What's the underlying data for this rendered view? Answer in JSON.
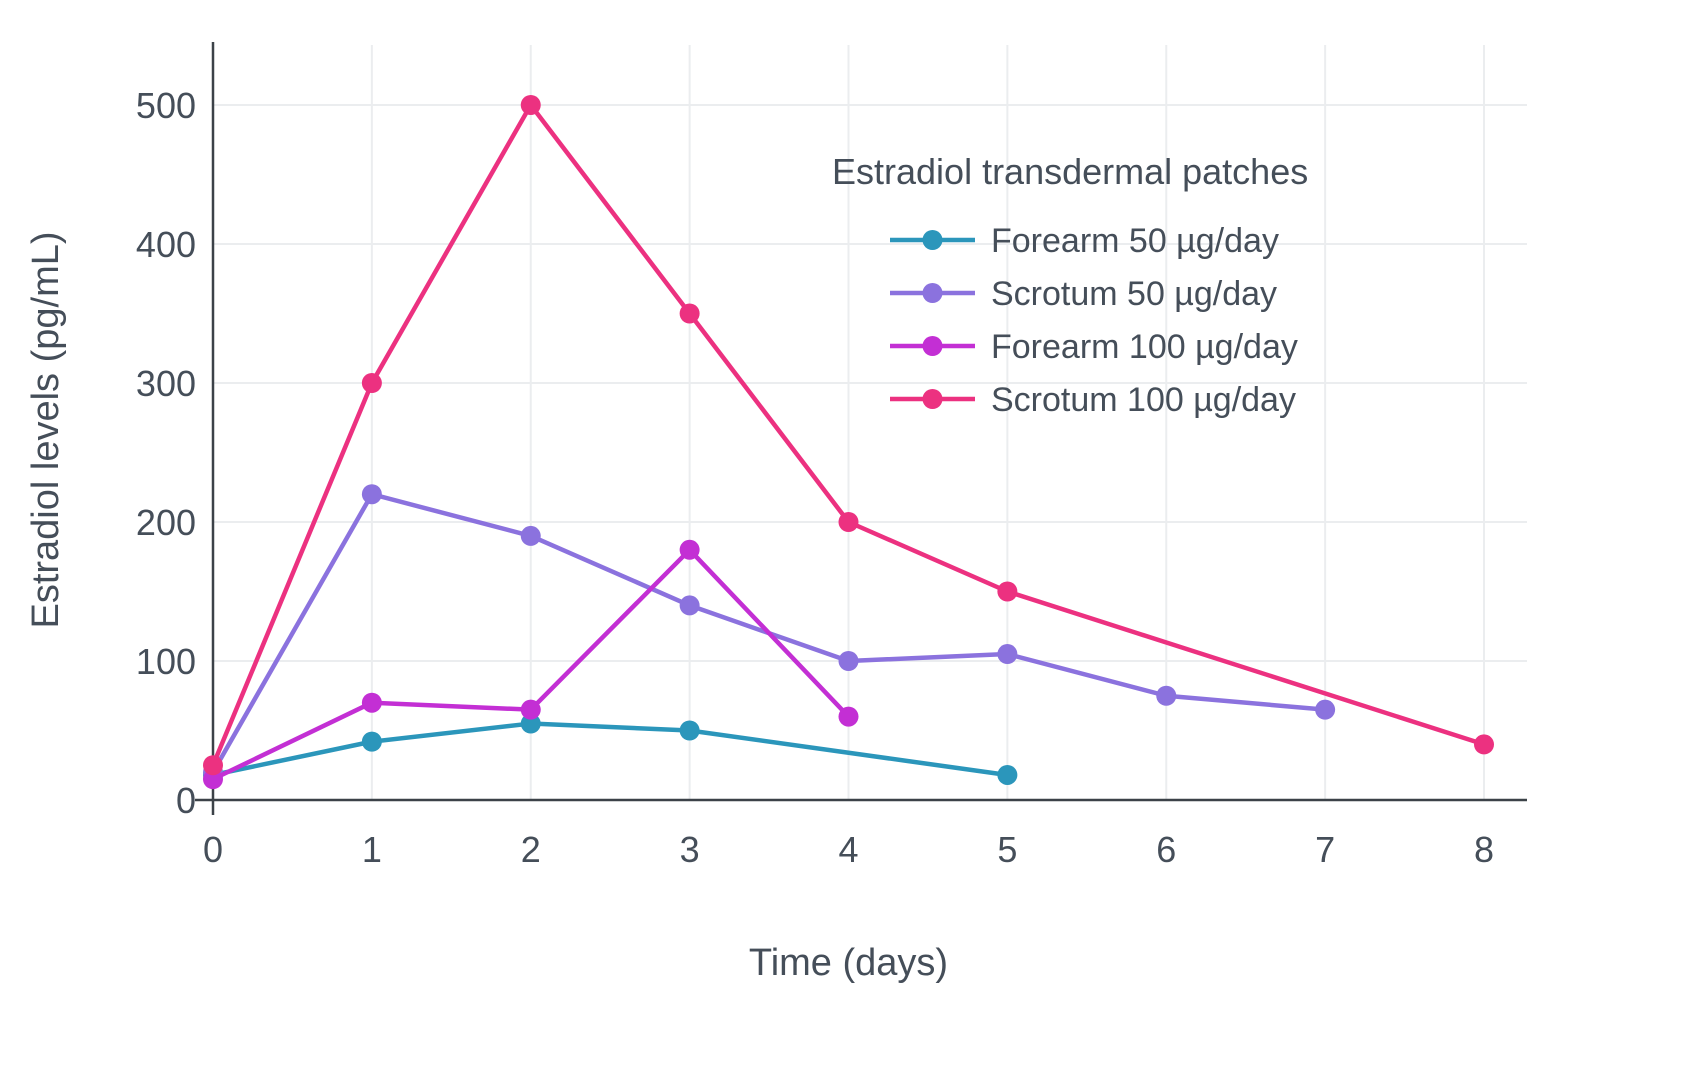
{
  "chart_data": {
    "type": "line",
    "title": "",
    "xlabel": "Time (days)",
    "ylabel": "Estradiol levels (pg/mL)",
    "xlim": [
      0,
      8
    ],
    "ylim": [
      0,
      540
    ],
    "xticks": [
      0,
      1,
      2,
      3,
      4,
      5,
      6,
      7,
      8
    ],
    "yticks": [
      0,
      100,
      200,
      300,
      400,
      500
    ],
    "grid": true,
    "background": "#ffffff",
    "gridline_color": "#ebedef",
    "axis_line_color": "#3c4248",
    "text_color": "#454e59",
    "legend_title": "Estradiol transdermal patches",
    "legend_position": "upper-right-inside",
    "series": [
      {
        "name": "Forearm 50 µg/day",
        "color": "#2b96bb",
        "x": [
          0,
          1,
          2,
          3,
          5
        ],
        "y": [
          18,
          42,
          55,
          50,
          18
        ]
      },
      {
        "name": "Scrotum 50 µg/day",
        "color": "#8b72de",
        "x": [
          0,
          1,
          2,
          3,
          4,
          5,
          6,
          7
        ],
        "y": [
          20,
          220,
          190,
          140,
          100,
          105,
          75,
          65
        ]
      },
      {
        "name": "Forearm 100 µg/day",
        "color": "#c32fd4",
        "x": [
          0,
          1,
          2,
          3,
          4
        ],
        "y": [
          15,
          70,
          65,
          180,
          60
        ]
      },
      {
        "name": "Scrotum 100 µg/day",
        "color": "#ec3180",
        "x": [
          0,
          1,
          2,
          3,
          4,
          5,
          8
        ],
        "y": [
          25,
          300,
          500,
          350,
          200,
          150,
          40
        ]
      }
    ]
  }
}
